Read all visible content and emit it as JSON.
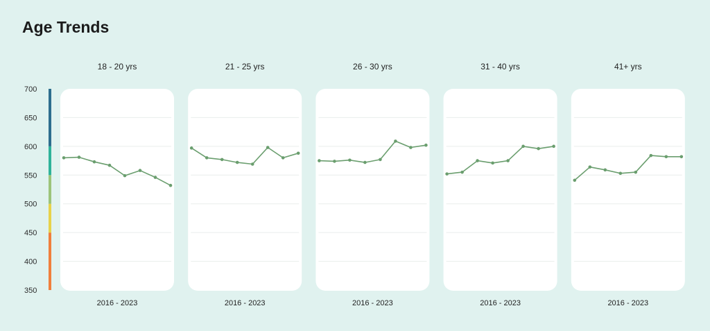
{
  "title": "Age Trends",
  "chart_data": {
    "type": "line",
    "title": "Age Trends",
    "ylim": [
      350,
      700
    ],
    "yticks": [
      700,
      650,
      600,
      550,
      500,
      450,
      400,
      350
    ],
    "x": [
      2016,
      2017,
      2018,
      2019,
      2020,
      2021,
      2022,
      2023
    ],
    "grid": true,
    "scale_bands": [
      {
        "from": 350,
        "to": 450,
        "color": "#f07f3c"
      },
      {
        "from": 450,
        "to": 500,
        "color": "#e8d24a"
      },
      {
        "from": 500,
        "to": 550,
        "color": "#9cc47a"
      },
      {
        "from": 550,
        "to": 600,
        "color": "#2fb39a"
      },
      {
        "from": 600,
        "to": 700,
        "color": "#2d6e8e"
      }
    ],
    "line_color": "#6a9e6e",
    "panels": [
      {
        "label": "18 - 20 yrs",
        "xlabel": "2016 - 2023",
        "values": [
          580,
          581,
          573,
          567,
          549,
          558,
          546,
          532
        ]
      },
      {
        "label": "21 - 25 yrs",
        "xlabel": "2016 - 2023",
        "values": [
          597,
          580,
          577,
          572,
          569,
          598,
          580,
          588
        ]
      },
      {
        "label": "26 - 30 yrs",
        "xlabel": "2016 - 2023",
        "values": [
          575,
          574,
          576,
          572,
          577,
          609,
          598,
          602
        ]
      },
      {
        "label": "31 - 40 yrs",
        "xlabel": "2016 - 2023",
        "values": [
          552,
          555,
          575,
          571,
          575,
          600,
          596,
          600
        ]
      },
      {
        "label": "41+ yrs",
        "xlabel": "2016 - 2023",
        "values": [
          541,
          564,
          559,
          553,
          555,
          584,
          582,
          582
        ]
      }
    ]
  }
}
